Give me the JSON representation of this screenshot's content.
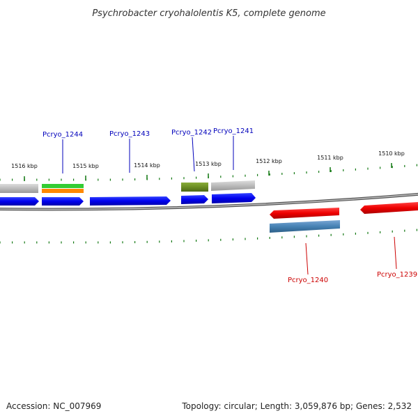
{
  "title": "Psychrobacter cryohalolentis K5, complete genome",
  "footer": {
    "accession": "Accession: NC_007969",
    "summary": "Topology: circular; Length: 3,059,876 bp; Genes: 2,532"
  },
  "colors": {
    "backbone": "#888888",
    "tick": "#117711",
    "forward_label": "#0000bb",
    "reverse_label": "#cc0000",
    "cds_forward": "#0000ee",
    "cds_reverse": "#ee0000",
    "gray": "#bbbbbb",
    "olive": "#6b8e23",
    "steelblue": "#4682b4",
    "green": "#33cc33",
    "orange": "#ff8800"
  },
  "ticks": [
    {
      "label": "1516 kbp"
    },
    {
      "label": "1515 kbp"
    },
    {
      "label": "1514 kbp"
    },
    {
      "label": "1513 kbp"
    },
    {
      "label": "1512 kbp"
    },
    {
      "label": "1511 kbp"
    },
    {
      "label": "1510 kbp"
    }
  ],
  "genes": [
    {
      "name": "Pcryo_1244",
      "strand": "forward"
    },
    {
      "name": "Pcryo_1243",
      "strand": "forward"
    },
    {
      "name": "Pcryo_1242",
      "strand": "forward"
    },
    {
      "name": "Pcryo_1241",
      "strand": "forward"
    },
    {
      "name": "Pcryo_1240",
      "strand": "reverse"
    },
    {
      "name": "Pcryo_1239",
      "strand": "reverse"
    }
  ]
}
